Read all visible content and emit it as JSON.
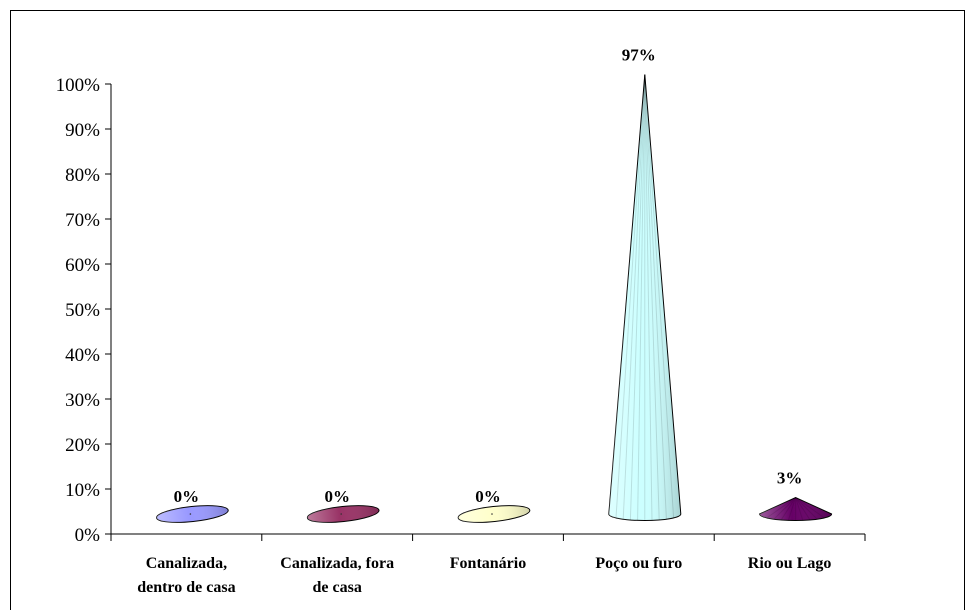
{
  "chart_data": {
    "type": "bar",
    "bar_shape": "cone",
    "categories": [
      [
        "Canalizada,",
        "dentro de casa"
      ],
      [
        "Canalizada, fora",
        "de casa"
      ],
      [
        "Fontanário"
      ],
      [
        "Poço ou furo"
      ],
      [
        "Rio ou Lago"
      ]
    ],
    "values": [
      0,
      0,
      0,
      97,
      3
    ],
    "data_labels": [
      "0%",
      "0%",
      "0%",
      "97%",
      "3%"
    ],
    "colors": [
      "#9999FF",
      "#993366",
      "#FFFFCC",
      "#CCFFFF",
      "#660066"
    ],
    "ylim": [
      0,
      100
    ],
    "yticks": [
      0,
      10,
      20,
      30,
      40,
      50,
      60,
      70,
      80,
      90,
      100
    ],
    "ytick_labels": [
      "0%",
      "10%",
      "20%",
      "30%",
      "40%",
      "50%",
      "60%",
      "70%",
      "80%",
      "90%",
      "100%"
    ],
    "title": "",
    "xlabel": "",
    "ylabel": "",
    "grid": false,
    "legend": false
  }
}
